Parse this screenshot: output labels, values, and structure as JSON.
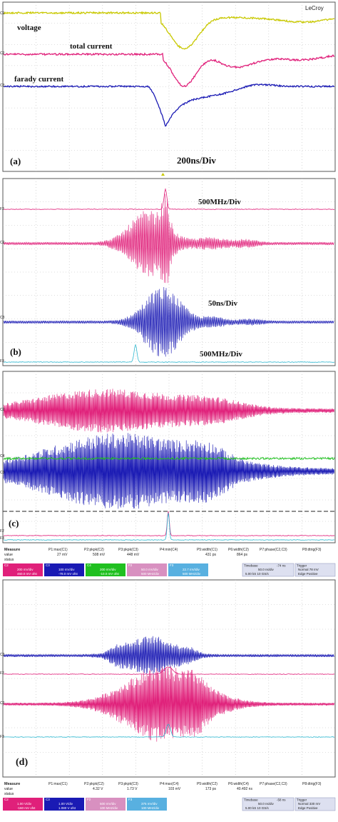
{
  "colors": {
    "c1": "#c8c800",
    "c2": "#e0207a",
    "c3": "#1a1ab4",
    "c4": "#20c020",
    "f3": "#30b8d0",
    "grid": "#bdbdbd",
    "frame": "#555555"
  },
  "chart_data": [
    {
      "type": "line",
      "panel": "(a)",
      "brand": "LeCroy",
      "annotations": [
        "voltage",
        "total current",
        "farady current",
        "200ns/Div"
      ],
      "channel_markers": [
        "C1",
        "C2",
        "C3"
      ],
      "series": [
        {
          "name": "voltage",
          "channel": "C1",
          "shape": "negative dip"
        },
        {
          "name": "total current",
          "channel": "C2",
          "shape": "negative dip with ringing"
        },
        {
          "name": "farady current",
          "channel": "C3",
          "shape": "sharp negative dip with recovery"
        }
      ]
    },
    {
      "type": "line",
      "panel": "(b)",
      "annotations": [
        "500MHz/Div",
        "50ns/Div",
        "500MHz/Div"
      ],
      "channel_markers": [
        "F2",
        "C2",
        "C3",
        "F3"
      ]
    },
    {
      "type": "line",
      "panel": "(c)",
      "channel_markers": [
        "C2",
        "C4",
        "C3",
        "F2",
        "F3"
      ],
      "measure": {
        "headers": [
          "Measure",
          "P1:max(C1)",
          "P2:pkpk(C2)",
          "P3:pkpk(C3)",
          "P4:min(C4)",
          "P5:width(C1)",
          "P6:width(C2)",
          "P7:phase(C2,C3)",
          "P8:dtrig(F3)"
        ],
        "value_label": "value",
        "status_label": "status",
        "values": [
          "27 mV",
          "508 mV",
          "448 mV",
          "",
          "431 ps",
          "864 ps",
          "",
          ""
        ]
      },
      "channels": [
        {
          "id": "C2",
          "lines": [
            "200 mV/div",
            "460.0 mV ofst"
          ]
        },
        {
          "id": "C3",
          "lines": [
            "100 mV/div",
            "-78.0 mV ofst"
          ]
        },
        {
          "id": "C4",
          "lines": [
            "200 mV/div",
            "-10.0 mV ofst"
          ]
        },
        {
          "id": "F2",
          "lines": [
            "50.0 mV/div",
            "500 MHz/div"
          ]
        },
        {
          "id": "F3",
          "lines": [
            "22.7 mV/div",
            "500 MHz/div"
          ]
        }
      ],
      "timebase": {
        "label": "Timebase",
        "delay": "-74 ns",
        "rows": [
          "50.0 ns/div",
          "5.00 kS   10 GS/s"
        ]
      },
      "trigger": {
        "label": "Trigger",
        "rows": [
          "Normal  78 mV",
          "Edge  Positive"
        ]
      }
    },
    {
      "type": "line",
      "panel": "(d)",
      "channel_markers": [
        "C3",
        "F2",
        "C2",
        "F3"
      ],
      "measure": {
        "headers": [
          "Measure",
          "P1:max(C1)",
          "P2:pkpk(C2)",
          "P3:pkpk(C3)",
          "P4:max(C4)",
          "P5:width(C2)",
          "P6:width(C4)",
          "P7:phase(C2,C3)",
          "P8:dtrig(F3)"
        ],
        "value_label": "value",
        "status_label": "status",
        "values": [
          "",
          "4.32 V",
          "1.73 V",
          "103 mV",
          "173 ps",
          "40.492 ns",
          "",
          ""
        ]
      },
      "channels": [
        {
          "id": "C2",
          "lines": [
            "1.00 V/div",
            "-160 mV ofst"
          ]
        },
        {
          "id": "C3",
          "lines": [
            "1.00 V/div",
            "1.080 V ofst"
          ]
        },
        {
          "id": "F2",
          "lines": [
            "500 mV/div",
            "100 MHz/div"
          ]
        },
        {
          "id": "F3",
          "lines": [
            "375 mV/div",
            "100 MHz/div"
          ]
        }
      ],
      "timebase": {
        "label": "Timebase",
        "delay": "-58 ns",
        "rows": [
          "50.0 ns/div",
          "5.00 kS   10 GS/s"
        ]
      },
      "trigger": {
        "label": "Trigger",
        "rows": [
          "Normal  330 mV",
          "Edge  Positive"
        ]
      }
    }
  ]
}
